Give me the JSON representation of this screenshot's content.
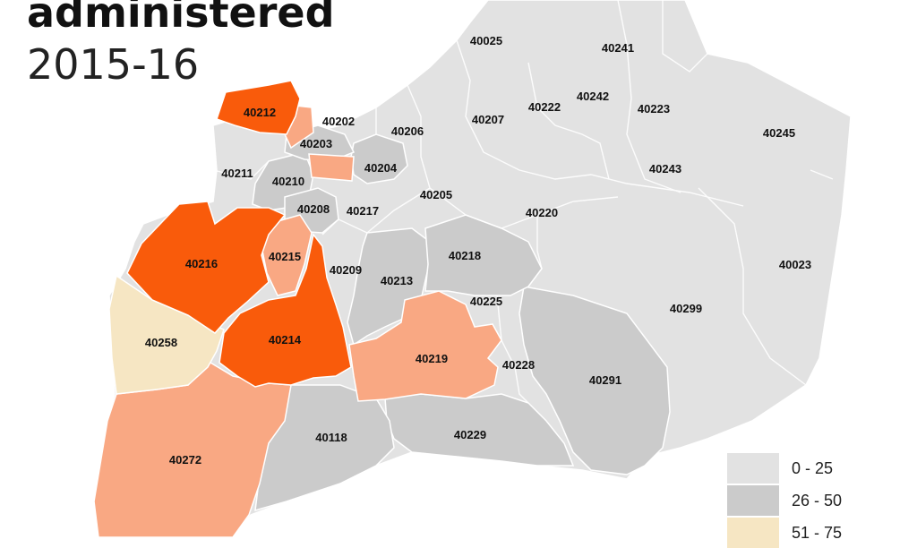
{
  "title": {
    "line1": "administered",
    "line2": "2015-16"
  },
  "colors": {
    "cat_0_25": "#e2e2e2",
    "cat_26_50": "#cbcbcb",
    "cat_51_75": "#f6e6c3",
    "cat_76_100": "#f9a883",
    "cat_top": "#f95b0b",
    "border": "#ffffff"
  },
  "legend": [
    {
      "label": "0 - 25",
      "color": "#e2e2e2"
    },
    {
      "label": "26 - 50",
      "color": "#cbcbcb"
    },
    {
      "label": "51 - 75",
      "color": "#f6e6c3"
    }
  ],
  "zip_codes": [
    {
      "zip": "40025",
      "category": "cat_0_25"
    },
    {
      "zip": "40241",
      "category": "cat_0_25"
    },
    {
      "zip": "40212",
      "category": "cat_top"
    },
    {
      "zip": "40202",
      "category": "cat_76_100"
    },
    {
      "zip": "40207",
      "category": "cat_0_25"
    },
    {
      "zip": "40222",
      "category": "cat_0_25"
    },
    {
      "zip": "40242",
      "category": "cat_0_25"
    },
    {
      "zip": "40223",
      "category": "cat_0_25"
    },
    {
      "zip": "40203",
      "category": "cat_26_50"
    },
    {
      "zip": "40206",
      "category": "cat_0_25"
    },
    {
      "zip": "40245",
      "category": "cat_0_25"
    },
    {
      "zip": "40204",
      "category": "cat_26_50"
    },
    {
      "zip": "40211",
      "category": "cat_0_25"
    },
    {
      "zip": "40243",
      "category": "cat_0_25"
    },
    {
      "zip": "40210",
      "category": "cat_26_50"
    },
    {
      "zip": "40205",
      "category": "cat_0_25"
    },
    {
      "zip": "40208",
      "category": "cat_26_50"
    },
    {
      "zip": "40217",
      "category": "cat_0_25"
    },
    {
      "zip": "40220",
      "category": "cat_0_25"
    },
    {
      "zip": "40216",
      "category": "cat_top"
    },
    {
      "zip": "40215",
      "category": "cat_76_100"
    },
    {
      "zip": "40218",
      "category": "cat_26_50"
    },
    {
      "zip": "40023",
      "category": "cat_0_25"
    },
    {
      "zip": "40209",
      "category": "cat_0_25"
    },
    {
      "zip": "40213",
      "category": "cat_26_50"
    },
    {
      "zip": "40225",
      "category": "cat_0_25"
    },
    {
      "zip": "40299",
      "category": "cat_0_25"
    },
    {
      "zip": "40258",
      "category": "cat_51_75"
    },
    {
      "zip": "40214",
      "category": "cat_top"
    },
    {
      "zip": "40219",
      "category": "cat_76_100"
    },
    {
      "zip": "40228",
      "category": "cat_0_25"
    },
    {
      "zip": "40291",
      "category": "cat_26_50"
    },
    {
      "zip": "40118",
      "category": "cat_26_50"
    },
    {
      "zip": "40229",
      "category": "cat_26_50"
    },
    {
      "zip": "40272",
      "category": "cat_76_100"
    }
  ]
}
